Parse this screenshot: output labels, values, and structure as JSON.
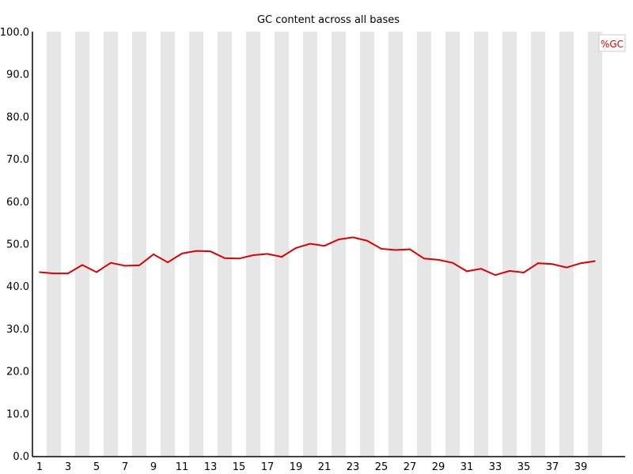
{
  "chart_data": {
    "type": "line",
    "title": "GC content across all bases",
    "xlabel": "",
    "ylabel": "",
    "x": [
      1,
      2,
      3,
      4,
      5,
      6,
      7,
      8,
      9,
      10,
      11,
      12,
      13,
      14,
      15,
      16,
      17,
      18,
      19,
      20,
      21,
      22,
      23,
      24,
      25,
      26,
      27,
      28,
      29,
      30,
      31,
      32,
      33,
      34,
      35,
      36,
      37,
      38,
      39,
      40
    ],
    "x_tick_labels": [
      "1",
      "3",
      "5",
      "7",
      "9",
      "11",
      "13",
      "15",
      "17",
      "19",
      "21",
      "23",
      "25",
      "27",
      "29",
      "31",
      "33",
      "35",
      "37",
      "39"
    ],
    "y_tick_labels": [
      "0.0",
      "10.0",
      "20.0",
      "30.0",
      "40.0",
      "50.0",
      "60.0",
      "70.0",
      "80.0",
      "90.0",
      "100.0"
    ],
    "ylim": [
      0,
      100
    ],
    "grid": false,
    "alternating_column_shading": true,
    "legend_position": "top-right",
    "series": [
      {
        "name": "%GC",
        "color": "#dd0000",
        "values": [
          43.3,
          43.0,
          43.0,
          45.0,
          43.3,
          45.5,
          44.8,
          44.9,
          47.5,
          45.6,
          47.7,
          48.3,
          48.2,
          46.6,
          46.5,
          47.3,
          47.6,
          46.9,
          49.0,
          50.0,
          49.5,
          51.0,
          51.5,
          50.7,
          48.8,
          48.5,
          48.7,
          46.5,
          46.2,
          45.5,
          43.5,
          44.1,
          42.6,
          43.6,
          43.2,
          45.4,
          45.2,
          44.4,
          45.4,
          45.9
        ]
      }
    ],
    "colors": {
      "band": "#e6e6e6",
      "line": "#dd0000",
      "axis": "#000000"
    }
  }
}
